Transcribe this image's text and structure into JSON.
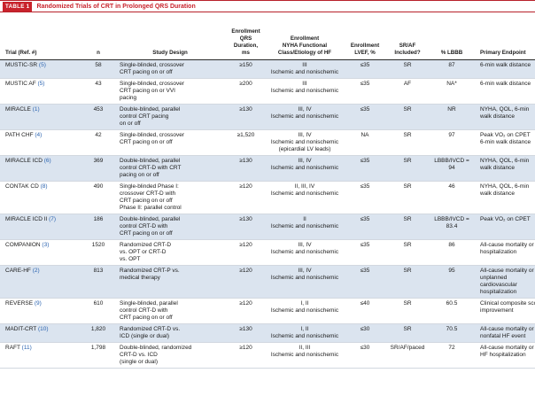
{
  "title": {
    "tag": "TABLE 1",
    "text": "Randomized Trials of CRT in Prolonged QRS Duration"
  },
  "headers": {
    "trial": "Trial (Ref. #)",
    "n": "n",
    "design": "Study Design",
    "qrs": [
      "Enrollment",
      "QRS",
      "Duration,",
      "ms"
    ],
    "nyha": [
      "Enrollment",
      "NYHA Functional",
      "Class/Etiology of HF"
    ],
    "lvef": [
      "Enrollment",
      "LVEF, %"
    ],
    "sraf": [
      "SR/AF",
      "Included?"
    ],
    "lbbb": "% LBBB",
    "endpoint": "Primary Endpoint"
  },
  "rows": [
    {
      "name": "MUSTIC-SR",
      "ref": "(5)",
      "n": "58",
      "design": [
        "Single-blinded, crossover",
        "CRT pacing on or off"
      ],
      "qrs": "≥150",
      "nyha": [
        "III",
        "Ischemic and nonischemic"
      ],
      "lvef": "≤35",
      "sraf": "SR",
      "lbbb": "87",
      "endpoint": [
        "6-min walk distance"
      ]
    },
    {
      "name": "MUSTIC AF",
      "ref": "(5)",
      "n": "43",
      "design": [
        "Single-blinded, crossover",
        "CRT pacing on or VVI",
        "pacing"
      ],
      "qrs": "≥200",
      "nyha": [
        "III",
        "Ischemic and nonischemic"
      ],
      "lvef": "≤35",
      "sraf": "AF",
      "lbbb": "NA*",
      "endpoint": [
        "6-min walk distance"
      ]
    },
    {
      "name": "MIRACLE",
      "ref": "(1)",
      "n": "453",
      "design": [
        "Double-blinded, parallel",
        "control CRT pacing",
        "on or off"
      ],
      "qrs": "≥130",
      "nyha": [
        "III, IV",
        "Ischemic and nonischemic"
      ],
      "lvef": "≤35",
      "sraf": "SR",
      "lbbb": "NR",
      "endpoint": [
        "NYHA, QOL, 6-min",
        "walk distance"
      ]
    },
    {
      "name": "PATH CHF",
      "ref": "(4)",
      "n": "42",
      "design": [
        "Single-blinded, crossover",
        "CRT pacing on or off"
      ],
      "qrs": "≥1,520",
      "nyha": [
        "III, IV",
        "Ischemic and nonischemic",
        "(epicardial LV leads)"
      ],
      "lvef": "NA",
      "sraf": "SR",
      "lbbb": "97",
      "endpoint": [
        "Peak VO₂ on CPET",
        "6-min walk distance"
      ]
    },
    {
      "name": "MIRACLE ICD",
      "ref": "(6)",
      "n": "369",
      "design": [
        "Double-blinded, parallel",
        "control CRT-D with CRT",
        "pacing on or off"
      ],
      "qrs": "≥130",
      "nyha": [
        "III, IV",
        "Ischemic and nonischemic"
      ],
      "lvef": "≤35",
      "sraf": "SR",
      "lbbb": "LBBB/IVCD = 94",
      "endpoint": [
        "NYHA, QOL, 6-min",
        "walk distance"
      ]
    },
    {
      "name": "CONTAK CD",
      "ref": "(8)",
      "n": "490",
      "design": [
        "Single-blinded Phase I:",
        "crossover CRT-D with",
        "CRT pacing on or off",
        "Phase II: parallel control"
      ],
      "qrs": "≥120",
      "nyha": [
        "II, III, IV",
        "Ischemic and nonischemic"
      ],
      "lvef": "≤35",
      "sraf": "SR",
      "lbbb": "46",
      "endpoint": [
        "NYHA, QOL, 6-min",
        "walk distance"
      ]
    },
    {
      "name": "MIRACLE ICD II",
      "ref": "(7)",
      "n": "186",
      "design": [
        "Double-blinded, parallel",
        "control CRT-D with",
        "CRT pacing on or off"
      ],
      "qrs": "≥130",
      "nyha": [
        "II",
        "Ischemic and nonischemic"
      ],
      "lvef": "≤35",
      "sraf": "SR",
      "lbbb": "LBBB/IVCD = 83.4",
      "endpoint": [
        "Peak VO₂ on CPET"
      ]
    },
    {
      "name": "COMPANION",
      "ref": "(3)",
      "n": "1520",
      "design": [
        "Randomized CRT-D",
        "vs. OPT or CRT-D",
        "vs. OPT"
      ],
      "qrs": "≥120",
      "nyha": [
        "III, IV",
        "Ischemic and nonischemic"
      ],
      "lvef": "≤35",
      "sraf": "SR",
      "lbbb": "86",
      "endpoint": [
        "All-cause mortality or",
        "hospitalization"
      ]
    },
    {
      "name": "CARE-HF",
      "ref": "(2)",
      "n": "813",
      "design": [
        "Randomized CRT-P vs.",
        "medical therapy"
      ],
      "qrs": "≥120",
      "nyha": [
        "III, IV",
        "Ischemic and nonischemic"
      ],
      "lvef": "≤35",
      "sraf": "SR",
      "lbbb": "95",
      "endpoint": [
        "All-cause mortality or",
        "unplanned",
        "cardiovascular",
        "hospitalization"
      ]
    },
    {
      "name": "REVERSE",
      "ref": "(9)",
      "n": "610",
      "design": [
        "Single-blinded, parallel",
        "control CRT-D with",
        "CRT pacing on or off"
      ],
      "qrs": "≥120",
      "nyha": [
        "I, II",
        "Ischemic and nonischemic"
      ],
      "lvef": "≤40",
      "sraf": "SR",
      "lbbb": "60.5",
      "endpoint": [
        "Clinical composite score",
        "improvement"
      ]
    },
    {
      "name": "MADIT-CRT",
      "ref": "(10)",
      "n": "1,820",
      "design": [
        "Randomized CRT-D vs.",
        "ICD (single or dual)"
      ],
      "qrs": "≥130",
      "nyha": [
        "I, II",
        "Ischemic and nonischemic"
      ],
      "lvef": "≤30",
      "sraf": "SR",
      "lbbb": "70.5",
      "endpoint": [
        "All-cause mortality or",
        "nonfatal HF event"
      ]
    },
    {
      "name": "RAFT",
      "ref": "(11)",
      "n": "1,798",
      "design": [
        "Double-blinded, randomized",
        "CRT-D vs. ICD",
        "(single or dual)"
      ],
      "qrs": "≥120",
      "nyha": [
        "II, III",
        "Ischemic and nonischemic"
      ],
      "lvef": "≤30",
      "sraf": "SR/AF/paced",
      "lbbb": "72",
      "endpoint": [
        "All-cause mortality or",
        "HF hospitalization"
      ]
    }
  ]
}
